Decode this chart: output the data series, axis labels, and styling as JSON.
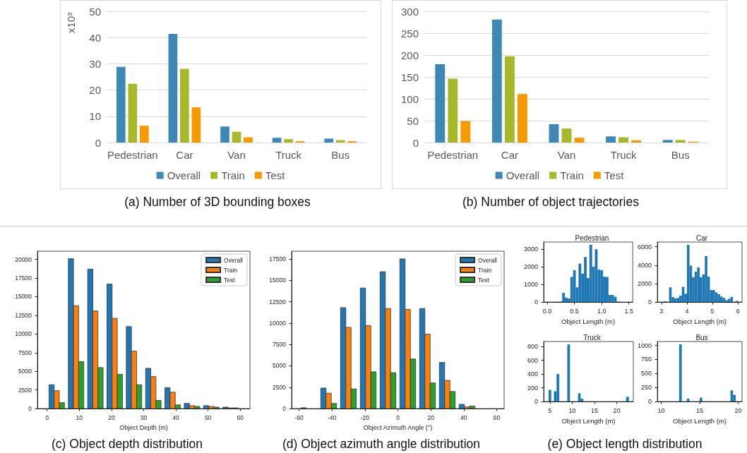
{
  "chart_data": [
    {
      "type": "bar",
      "ylabel": "x10³",
      "categories": [
        "Pedestrian",
        "Car",
        "Van",
        "Truck",
        "Bus"
      ],
      "series": [
        {
          "name": "Overall",
          "color": "#3f87b5",
          "values": [
            28.8,
            41.4,
            6.1,
            1.8,
            1.5
          ]
        },
        {
          "name": "Train",
          "color": "#a8b82b",
          "values": [
            22.4,
            28.1,
            4.1,
            1.3,
            0.9
          ]
        },
        {
          "name": "Test",
          "color": "#f59a00",
          "values": [
            6.4,
            13.4,
            2.0,
            0.5,
            0.5
          ]
        }
      ],
      "ylim": [
        0,
        50
      ],
      "yticks": [
        0,
        10,
        20,
        30,
        40,
        50
      ],
      "grid": "y",
      "legend": "bottom",
      "annotations": [
        "(a) Number of 3D bounding boxes"
      ]
    },
    {
      "type": "bar",
      "categories": [
        "Pedestrian",
        "Car",
        "Van",
        "Truck",
        "Bus"
      ],
      "series": [
        {
          "name": "Overall",
          "color": "#3f87b5",
          "values": [
            179,
            281,
            42,
            14,
            6
          ]
        },
        {
          "name": "Train",
          "color": "#a8b82b",
          "values": [
            146,
            197,
            32,
            12,
            6
          ]
        },
        {
          "name": "Test",
          "color": "#f59a00",
          "values": [
            49,
            111,
            11,
            5,
            2
          ]
        }
      ],
      "ylim": [
        0,
        300
      ],
      "yticks": [
        0,
        50,
        100,
        150,
        200,
        250,
        300
      ],
      "grid": "y",
      "legend": "bottom",
      "annotations": [
        "(b) Number of object trajectories"
      ]
    },
    {
      "type": "histogram",
      "xlabel": "Object Depth (m)",
      "bins": [
        0,
        6,
        12,
        18,
        24,
        30,
        36,
        42,
        48,
        54,
        60
      ],
      "series": [
        {
          "name": "Overall",
          "color": "#1f77b4",
          "values": [
            3200,
            20100,
            18700,
            16700,
            11000,
            5400,
            2800,
            700,
            400,
            200
          ]
        },
        {
          "name": "Train",
          "color": "#ff7f0e",
          "values": [
            2400,
            13800,
            13100,
            12100,
            7700,
            4300,
            2200,
            400,
            300,
            100
          ]
        },
        {
          "name": "Test",
          "color": "#2ca02c",
          "values": [
            800,
            6300,
            5500,
            4600,
            3200,
            1100,
            500,
            300,
            200,
            100
          ]
        }
      ],
      "xlim": [
        -3,
        63
      ],
      "xticks": [
        0,
        10,
        20,
        30,
        40,
        50,
        60
      ],
      "ylim": [
        0,
        21100
      ],
      "yticks": [
        0,
        2500,
        5000,
        7500,
        10000,
        12500,
        15000,
        17500,
        20000
      ],
      "legend": "top right",
      "annotations": [
        "(c) Object depth distribution"
      ]
    },
    {
      "type": "histogram",
      "xlabel": "Object Azimuth Angle (°)",
      "bins": [
        -60,
        -48,
        -36,
        -24,
        -12,
        0,
        12,
        24,
        36,
        48,
        60
      ],
      "series": [
        {
          "name": "Overall",
          "color": "#1f77b4",
          "values": [
            100,
            2400,
            11800,
            14100,
            16000,
            17500,
            11700,
            5400,
            500,
            0
          ]
        },
        {
          "name": "Train",
          "color": "#ff7f0e",
          "values": [
            0,
            1800,
            9500,
            9700,
            11700,
            11600,
            8700,
            3300,
            200,
            0
          ]
        },
        {
          "name": "Test",
          "color": "#2ca02c",
          "values": [
            0,
            600,
            2300,
            4300,
            4200,
            5800,
            3000,
            2000,
            300,
            0
          ]
        }
      ],
      "xlim": [
        -64.5,
        64.5
      ],
      "xticks": [
        -60,
        -40,
        -20,
        0,
        20,
        40,
        60
      ],
      "ylim": [
        0,
        18400
      ],
      "yticks": [
        0,
        2500,
        5000,
        7500,
        10000,
        12500,
        15000,
        17500
      ],
      "legend": "top right",
      "annotations": [
        "(d) Object azimuth angle distribution"
      ]
    },
    {
      "type": "histogram",
      "title": "Pedestrian",
      "xlabel": "Object Length (m)",
      "color": "#1f77b4",
      "bins": [
        0.025,
        0.075,
        0.125,
        0.175,
        0.225,
        0.275,
        0.325,
        0.375,
        0.425,
        0.475,
        0.525,
        0.575,
        0.625,
        0.675,
        0.725,
        0.775,
        0.825,
        0.875,
        0.925,
        0.975,
        1.025,
        1.075,
        1.125,
        1.175,
        1.225,
        1.275,
        1.325,
        1.375,
        1.425,
        1.475,
        1.525
      ],
      "values": [
        0,
        0,
        0,
        0,
        30,
        520,
        250,
        200,
        1420,
        1800,
        830,
        2170,
        1600,
        2540,
        1360,
        3230,
        2000,
        2980,
        1830,
        1800,
        1430,
        1420,
        400,
        400,
        300,
        30,
        0,
        0,
        0,
        0
      ],
      "xlim": [
        -0.065,
        1.57
      ],
      "xticks": [
        {
          "value": 0,
          "label": "0.0"
        },
        0.5,
        {
          "value": 1,
          "label": "1.0"
        },
        1.5
      ],
      "ylim": [
        0,
        3390
      ],
      "yticks": [
        0,
        1000,
        2000,
        3000
      ],
      "annotations": [
        "(e) Object length distribution"
      ]
    },
    {
      "type": "histogram",
      "title": "Car",
      "xlabel": "Object Length (m)",
      "color": "#1f77b4",
      "bins": [
        3.0,
        3.1,
        3.2,
        3.3,
        3.4,
        3.5,
        3.6,
        3.7,
        3.8,
        3.9,
        4.0,
        4.1,
        4.2,
        4.3,
        4.4,
        4.5,
        4.6,
        4.7,
        4.8,
        4.9,
        5.0,
        5.1,
        5.2,
        5.3,
        5.4,
        5.5,
        5.6,
        5.7,
        5.8,
        5.9,
        6.0
      ],
      "values": [
        0,
        100,
        0,
        1600,
        550,
        400,
        450,
        700,
        1650,
        900,
        6200,
        3950,
        2700,
        3300,
        3750,
        2700,
        3000,
        4980,
        2750,
        1300,
        1300,
        1050,
        850,
        600,
        450,
        200,
        350,
        550,
        0,
        130
      ],
      "xlim": [
        2.84,
        6.16
      ],
      "xticks": [
        3,
        4,
        5,
        6
      ],
      "ylim": [
        0,
        6510
      ],
      "yticks": [
        0,
        2000,
        4000,
        6000
      ]
    },
    {
      "type": "histogram",
      "title": "Truck",
      "xlabel": "Object Length (m)",
      "color": "#1f77b4",
      "bins": [
        4.7,
        5.3,
        5.9,
        6.5,
        7.1,
        7.7,
        8.3,
        8.9,
        9.5,
        10.1,
        10.7,
        11.3,
        11.9,
        12.5,
        13.1,
        13.7,
        14.3,
        14.9,
        15.5,
        16.1,
        16.7,
        17.3,
        17.9,
        18.5,
        19.1,
        19.7,
        20.3,
        20.9,
        21.5,
        22.1,
        22.7
      ],
      "values": [
        170,
        0,
        150,
        400,
        0,
        0,
        0,
        830,
        0,
        0,
        0,
        120,
        40,
        0,
        0,
        0,
        0,
        0,
        0,
        0,
        0,
        0,
        0,
        0,
        0,
        0,
        0,
        0,
        0,
        70
      ],
      "xlim": [
        3.6,
        23.7
      ],
      "xticks": [
        5,
        10,
        15,
        20
      ],
      "ylim": [
        0,
        872
      ],
      "yticks": [
        0,
        200,
        400,
        600,
        800
      ]
    },
    {
      "type": "histogram",
      "title": "Bus",
      "xlabel": "Object Length (m)",
      "color": "#1f77b4",
      "bins": [
        10,
        10.33,
        10.67,
        11,
        11.33,
        11.67,
        12,
        12.33,
        12.67,
        13,
        13.33,
        13.67,
        14,
        14.33,
        14.67,
        15,
        15.33,
        15.67,
        16,
        16.33,
        16.67,
        17,
        17.33,
        17.67,
        18,
        18.33,
        18.67,
        19,
        19.33,
        19.67,
        20
      ],
      "values": [
        0,
        0,
        0,
        0,
        0,
        0,
        0,
        1020,
        0,
        0,
        50,
        0,
        0,
        0,
        0,
        70,
        0,
        0,
        0,
        0,
        0,
        0,
        0,
        0,
        0,
        0,
        0,
        200,
        120,
        0
      ],
      "xlim": [
        9.5,
        20.5
      ],
      "xticks": [
        10,
        15,
        20
      ],
      "ylim": [
        0,
        1070
      ],
      "yticks": [
        0,
        250,
        500,
        750,
        1000
      ]
    }
  ]
}
